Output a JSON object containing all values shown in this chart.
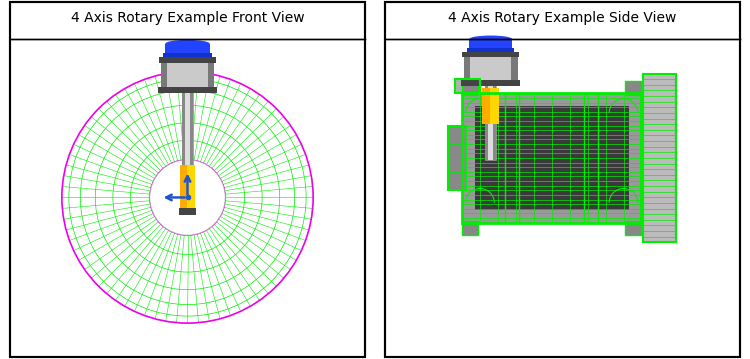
{
  "title_left": "4 Axis Rotary Example Front View",
  "title_right": "4 Axis Rotary Example Side View",
  "bg_color": "#ffffff",
  "border_color": "#000000",
  "title_fontsize": 10,
  "green": "#00ee00",
  "magenta": "#ee00ee",
  "orange": "#FFA500",
  "gold": "#FFD700",
  "blue_cap": "#2244ff",
  "gray_body": "#b0b0b0",
  "gray_dark": "#444444",
  "gray_light": "#dddddd",
  "gray_mid": "#888888",
  "white": "#ffffff",
  "arrow_color": "#2255cc"
}
